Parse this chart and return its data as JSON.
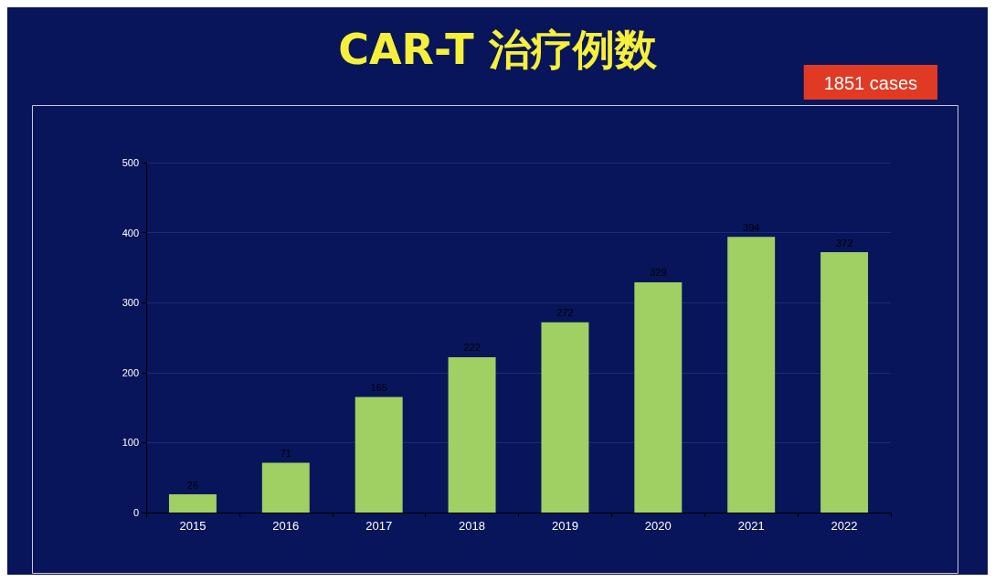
{
  "chart_data": {
    "type": "bar",
    "title": "CAR-T 治疗例数",
    "categories": [
      "2015",
      "2016",
      "2017",
      "2018",
      "2019",
      "2020",
      "2021",
      "2022"
    ],
    "values": [
      26,
      71,
      165,
      222,
      272,
      329,
      394,
      372
    ],
    "color": "#a0cf63",
    "ylim": [
      0,
      500
    ],
    "yticks": [
      0,
      100,
      200,
      300,
      400,
      500
    ],
    "grid": "y",
    "data_labels": true,
    "annotations": [
      "1851 cases"
    ]
  }
}
